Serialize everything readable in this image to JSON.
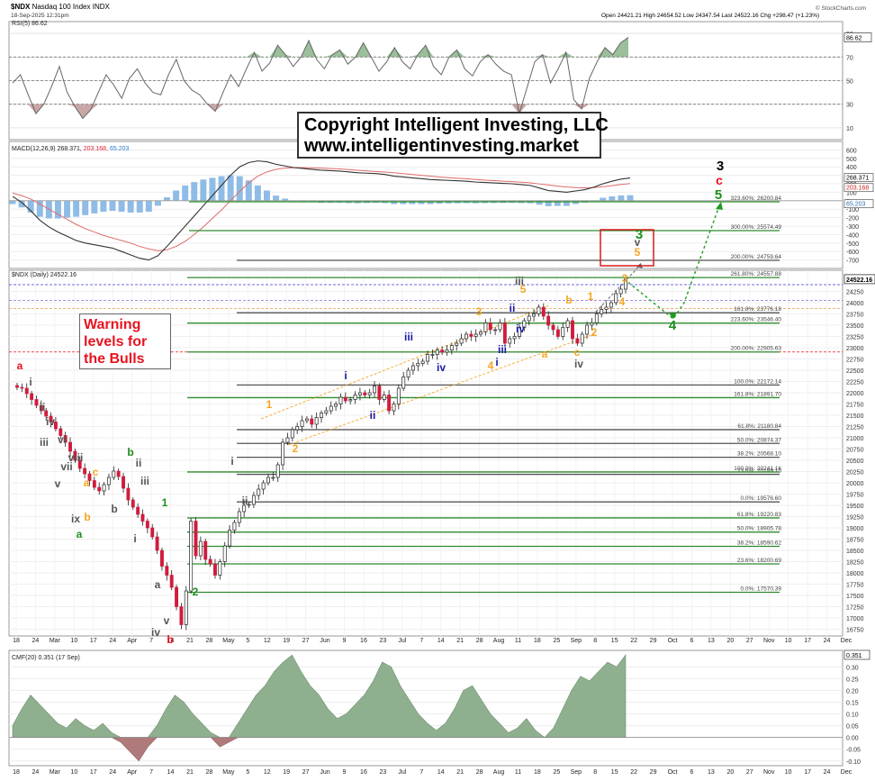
{
  "header": {
    "symbol": "$NDX",
    "name": "Nasdaq 100 Index",
    "exchange": "INDX",
    "datetime": "18-Sep-2025 12:31pm",
    "ohlc": "Open 24421.21  High 24654.52  Low 24347.54  Last 24522.16  Chg +298.47 (+1.23%)",
    "chg_arrow": "▲",
    "watermark": "© StockCharts.com"
  },
  "overlays": {
    "copyright_line1": "Copyright Intelligent Investing, LLC",
    "copyright_line2": "www.intelligentinvesting.market",
    "warning_lines": [
      "Warning",
      "levels for",
      "the Bulls"
    ]
  },
  "colors": {
    "up": "#ffffff",
    "down": "#d01c3c",
    "green_level": "#2e8b2e",
    "gray_level": "#555555",
    "orange": "#f5a623",
    "blue": "#1a1aa8",
    "red": "#e8131f",
    "rsi_fill": "#7aa87a",
    "cmf_fill": "#8fb08f",
    "hist": "#8fbce6"
  },
  "chart_data": [
    {
      "panel": "rsi",
      "type": "line",
      "legend": "RSI(5) 86.62",
      "last_value": "86.62",
      "ylim": [
        0,
        100
      ],
      "yticks": [
        "90",
        "70",
        "50",
        "30",
        "10"
      ],
      "overbought": 70,
      "oversold": 30,
      "values": [
        48,
        55,
        38,
        22,
        30,
        45,
        62,
        40,
        28,
        18,
        25,
        40,
        55,
        46,
        35,
        52,
        60,
        48,
        40,
        38,
        55,
        68,
        50,
        42,
        38,
        30,
        24,
        40,
        55,
        45,
        60,
        74,
        58,
        65,
        80,
        72,
        62,
        70,
        84,
        68,
        60,
        72,
        76,
        64,
        70,
        82,
        70,
        58,
        66,
        78,
        66,
        60,
        72,
        80,
        62,
        55,
        70,
        76,
        60,
        54,
        66,
        72,
        64,
        58,
        55,
        22,
        44,
        66,
        72,
        48,
        60,
        74,
        34,
        26,
        52,
        66,
        78,
        72,
        82,
        86.62
      ]
    },
    {
      "panel": "macd",
      "type": "line",
      "legend": "MACD(12,26,9) 268.371, 203.168, 65.203",
      "macd_label": "MACD(12,26,9)",
      "macd_value": "268.371",
      "signal_value": "203.168",
      "hist_value": "65.203",
      "ylim": [
        -800,
        700
      ],
      "yticks": [
        "600",
        "500",
        "400",
        "300",
        "200",
        "100",
        "0",
        "-100",
        "-200",
        "-300",
        "-400",
        "-500",
        "-600",
        "-700"
      ],
      "macd": [
        50,
        -20,
        -120,
        -230,
        -310,
        -370,
        -420,
        -470,
        -500,
        -520,
        -540,
        -560,
        -600,
        -640,
        -680,
        -700,
        -650,
        -540,
        -420,
        -300,
        -180,
        -60,
        60,
        180,
        300,
        400,
        450,
        470,
        460,
        430,
        410,
        390,
        380,
        370,
        360,
        355,
        350,
        340,
        330,
        325,
        320,
        310,
        290,
        280,
        270,
        260,
        250,
        245,
        240,
        235,
        230,
        220,
        215,
        210,
        205,
        200,
        190,
        180,
        150,
        120,
        110,
        100,
        115,
        130,
        160,
        200,
        230,
        255,
        268.371
      ],
      "signal": [
        90,
        60,
        20,
        -40,
        -100,
        -160,
        -220,
        -280,
        -330,
        -370,
        -410,
        -440,
        -470,
        -500,
        -540,
        -570,
        -590,
        -580,
        -540,
        -480,
        -400,
        -310,
        -210,
        -110,
        0,
        110,
        210,
        290,
        340,
        370,
        385,
        390,
        390,
        388,
        385,
        380,
        375,
        368,
        360,
        352,
        345,
        338,
        330,
        320,
        310,
        300,
        290,
        280,
        272,
        265,
        258,
        250,
        243,
        237,
        231,
        225,
        218,
        210,
        198,
        185,
        172,
        162,
        155,
        152,
        155,
        165,
        178,
        192,
        203.168
      ],
      "histogram": [
        -40,
        -80,
        -140,
        -190,
        -210,
        -210,
        -200,
        -190,
        -170,
        -150,
        -130,
        -120,
        -130,
        -140,
        -140,
        -130,
        -60,
        40,
        120,
        180,
        220,
        250,
        270,
        290,
        300,
        290,
        240,
        180,
        120,
        60,
        25,
        0,
        -10,
        -18,
        -25,
        -25,
        -25,
        -28,
        -30,
        -27,
        -25,
        -28,
        -40,
        -40,
        -40,
        -40,
        -40,
        -35,
        -32,
        -30,
        -28,
        -30,
        -28,
        -27,
        -26,
        -25,
        -28,
        -30,
        -48,
        -65,
        -62,
        -62,
        -40,
        -22,
        5,
        35,
        52,
        63,
        65.203
      ]
    },
    {
      "panel": "price",
      "type": "candlestick",
      "legend": "$NDX (Daily) 24522.16",
      "last_value": "24522.16",
      "ylim": [
        16600,
        24720
      ],
      "yticks": [
        "24250",
        "24000",
        "23750",
        "23500",
        "23250",
        "23000",
        "22750",
        "22500",
        "22250",
        "22000",
        "21750",
        "21500",
        "21250",
        "21000",
        "20750",
        "20500",
        "20250",
        "20000",
        "19750",
        "19500",
        "19250",
        "19000",
        "18750",
        "18500",
        "18250",
        "18000",
        "17750",
        "17500",
        "17250",
        "17000",
        "16750"
      ],
      "xticks": [
        "18",
        "24",
        "Mar",
        "10",
        "17",
        "24",
        "Apr",
        "7",
        "14",
        "21",
        "28",
        "May",
        "5",
        "12",
        "19",
        "27",
        "Jun",
        "9",
        "16",
        "23",
        "Jul",
        "7",
        "14",
        "21",
        "28",
        "Aug",
        "11",
        "18",
        "25",
        "Sep",
        "8",
        "15",
        "22",
        "29",
        "Oct",
        "6",
        "13",
        "20",
        "27",
        "Nov",
        "10",
        "17",
        "24",
        "Dec"
      ],
      "closes": [
        22120,
        22100,
        21980,
        21850,
        21720,
        21600,
        21480,
        21350,
        21200,
        21050,
        20900,
        20700,
        20500,
        20320,
        20200,
        20050,
        19900,
        19820,
        19960,
        20120,
        20260,
        20140,
        19880,
        19620,
        19460,
        19300,
        19150,
        19000,
        18800,
        18500,
        18150,
        17950,
        17680,
        17250,
        16850,
        17600,
        19150,
        18380,
        18700,
        18300,
        18200,
        17950,
        18250,
        18600,
        18950,
        19120,
        19360,
        19500,
        19520,
        19720,
        19860,
        20000,
        20120,
        20120,
        20400,
        20900,
        21000,
        21180,
        21250,
        21380,
        21420,
        21300,
        21450,
        21550,
        21600,
        21700,
        21750,
        21900,
        21820,
        21850,
        21950,
        22000,
        21950,
        22000,
        22150,
        21850,
        21950,
        21600,
        21750,
        22100,
        22350,
        22500,
        22600,
        22650,
        22700,
        22850,
        22850,
        22950,
        22900,
        22950,
        23050,
        23100,
        23200,
        23300,
        23250,
        23300,
        23350,
        23550,
        23400,
        23400,
        23550,
        23100,
        23200,
        23250,
        23450,
        23600,
        23700,
        23750,
        23900,
        23700,
        23500,
        23400,
        23250,
        23450,
        23600,
        23200,
        23100,
        23300,
        23500,
        23550,
        23750,
        23850,
        23900,
        24000,
        24200,
        24300,
        24522.16
      ],
      "levels": [
        {
          "label": "323.60%: 26200.84",
          "value": 26200.84,
          "kind": "green"
        },
        {
          "label": "300.00%: 25574.49",
          "value": 25574.49,
          "kind": "green"
        },
        {
          "label": "200.00%: 24759.64",
          "value": 24759.64,
          "kind": "gray"
        },
        {
          "label": "261.80%: 24557.88",
          "value": 24557.88,
          "kind": "green"
        },
        {
          "label": "161.8%: 23776.18",
          "value": 23776.18,
          "kind": "gray"
        },
        {
          "label": "223.60%: 23546.40",
          "value": 23546.4,
          "kind": "green"
        },
        {
          "label": "200.00%: 22905.63",
          "value": 22905.63,
          "kind": "green"
        },
        {
          "label": "100.0%: 22172.14",
          "value": 22172.14,
          "kind": "gray"
        },
        {
          "label": "161.8%: 21891.70",
          "value": 21891.7,
          "kind": "green"
        },
        {
          "label": "61.8%: 21180.84",
          "value": 21180.84,
          "kind": "gray"
        },
        {
          "label": "50.0%: 20874.37",
          "value": 20874.37,
          "kind": "gray"
        },
        {
          "label": "38.2%: 20568.10",
          "value": 20568.1,
          "kind": "gray"
        },
        {
          "label": "23.6%: 20189.15",
          "value": 20189.15,
          "kind": "gray"
        },
        {
          "label": "100.0%: 20241.16",
          "value": 20241.16,
          "kind": "green"
        },
        {
          "label": "0.0%: 19576.60",
          "value": 19576.6,
          "kind": "gray"
        },
        {
          "label": "61.8%: 19220.83",
          "value": 19220.83,
          "kind": "green"
        },
        {
          "label": "50.0%: 18905.78",
          "value": 18905.78,
          "kind": "green"
        },
        {
          "label": "38.2%: 18590.62",
          "value": 18590.62,
          "kind": "green"
        },
        {
          "label": "23.6%: 18200.69",
          "value": 18200.69,
          "kind": "green"
        },
        {
          "label": "0.0%: 17570.39",
          "value": 17570.39,
          "kind": "green"
        }
      ],
      "wave_labels": [
        {
          "text": "a",
          "color": "red"
        },
        {
          "text": "i",
          "color": "gray"
        },
        {
          "text": "ii",
          "color": "gray"
        },
        {
          "text": "iii",
          "color": "gray"
        },
        {
          "text": "iv",
          "color": "gray"
        },
        {
          "text": "v",
          "color": "gray"
        },
        {
          "text": "vi",
          "color": "gray"
        },
        {
          "text": "vii",
          "color": "gray"
        },
        {
          "text": "viii",
          "color": "gray"
        },
        {
          "text": "ix",
          "color": "gray"
        },
        {
          "text": "a",
          "color": "orange"
        },
        {
          "text": "b",
          "color": "orange"
        },
        {
          "text": "c",
          "color": "orange"
        },
        {
          "text": "a",
          "color": "green"
        },
        {
          "text": "b",
          "color": "green"
        },
        {
          "text": "b",
          "color": "gray"
        },
        {
          "text": "i",
          "color": "gray"
        },
        {
          "text": "ii",
          "color": "gray"
        },
        {
          "text": "iii",
          "color": "gray"
        },
        {
          "text": "iv",
          "color": "gray"
        },
        {
          "text": "v",
          "color": "gray"
        },
        {
          "text": "a",
          "color": "gray"
        },
        {
          "text": "b",
          "color": "red"
        },
        {
          "text": "1",
          "color": "green"
        },
        {
          "text": "2",
          "color": "green"
        },
        {
          "text": "i",
          "color": "gray"
        },
        {
          "text": "ii",
          "color": "gray"
        },
        {
          "text": "1",
          "color": "orange"
        },
        {
          "text": "2",
          "color": "orange"
        },
        {
          "text": "i",
          "color": "blue"
        },
        {
          "text": "ii",
          "color": "blue"
        },
        {
          "text": "iii",
          "color": "blue"
        },
        {
          "text": "iv",
          "color": "blue"
        },
        {
          "text": "3",
          "color": "orange"
        },
        {
          "text": "4",
          "color": "orange"
        },
        {
          "text": "5",
          "color": "orange"
        },
        {
          "text": "iii",
          "color": "gray"
        },
        {
          "text": "i",
          "color": "blue"
        },
        {
          "text": "ii",
          "color": "blue"
        },
        {
          "text": "iii",
          "color": "blue"
        },
        {
          "text": "iv",
          "color": "blue"
        },
        {
          "text": "b",
          "color": "orange"
        },
        {
          "text": "a",
          "color": "orange"
        },
        {
          "text": "c",
          "color": "orange"
        },
        {
          "text": "iv",
          "color": "gray"
        },
        {
          "text": "1",
          "color": "orange"
        },
        {
          "text": "2",
          "color": "orange"
        },
        {
          "text": "3",
          "color": "orange"
        },
        {
          "text": "4",
          "color": "orange"
        },
        {
          "text": "5",
          "color": "orange"
        },
        {
          "text": "3",
          "color": "green"
        },
        {
          "text": "v",
          "color": "gray"
        },
        {
          "text": "4",
          "color": "green"
        },
        {
          "text": "3",
          "color": "black"
        },
        {
          "text": "c",
          "color": "red"
        },
        {
          "text": "5",
          "color": "green"
        }
      ]
    },
    {
      "panel": "cmf",
      "type": "area",
      "legend": "CMF(20) 0.351 (17 Sep)",
      "last_value": "0.351",
      "ylim": [
        -0.12,
        0.37
      ],
      "yticks": [
        "0.30",
        "0.25",
        "0.20",
        "0.15",
        "0.10",
        "0.05",
        "0.00",
        "-0.05",
        "-0.10"
      ],
      "values": [
        0.05,
        0.12,
        0.18,
        0.14,
        0.1,
        0.06,
        0.04,
        0.08,
        0.05,
        0.03,
        0.06,
        0.02,
        -0.02,
        -0.06,
        -0.1,
        -0.04,
        0.05,
        0.12,
        0.18,
        0.15,
        0.1,
        0.06,
        0.02,
        -0.04,
        -0.02,
        0.06,
        0.12,
        0.18,
        0.22,
        0.28,
        0.32,
        0.35,
        0.28,
        0.22,
        0.18,
        0.12,
        0.08,
        0.1,
        0.14,
        0.18,
        0.24,
        0.32,
        0.3,
        0.22,
        0.16,
        0.1,
        0.06,
        0.03,
        0.06,
        0.12,
        0.2,
        0.22,
        0.16,
        0.1,
        0.06,
        0.02,
        0.04,
        0.08,
        0.03,
        0.0,
        0.04,
        0.12,
        0.2,
        0.26,
        0.24,
        0.28,
        0.32,
        0.3,
        0.351
      ]
    }
  ]
}
